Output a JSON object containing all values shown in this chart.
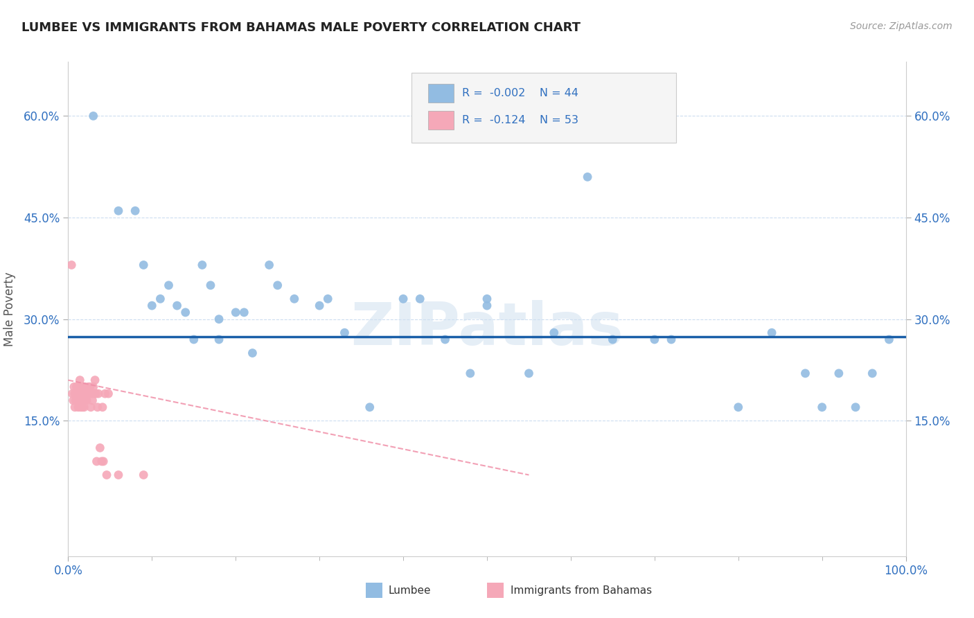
{
  "title": "LUMBEE VS IMMIGRANTS FROM BAHAMAS MALE POVERTY CORRELATION CHART",
  "source": "Source: ZipAtlas.com",
  "ylabel": "Male Poverty",
  "yticks": [
    "15.0%",
    "30.0%",
    "45.0%",
    "60.0%"
  ],
  "ytick_values": [
    0.15,
    0.3,
    0.45,
    0.6
  ],
  "xlim": [
    0.0,
    1.0
  ],
  "ylim": [
    -0.05,
    0.68
  ],
  "lumbee_R": "-0.002",
  "lumbee_N": "44",
  "bahamas_R": "-0.124",
  "bahamas_N": "53",
  "lumbee_color": "#92bce2",
  "bahamas_color": "#f5a8b8",
  "lumbee_line_color": "#1a5fa8",
  "bahamas_line_color": "#f090a8",
  "watermark": "ZIPatlas",
  "lumbee_x": [
    0.03,
    0.06,
    0.08,
    0.09,
    0.1,
    0.11,
    0.12,
    0.13,
    0.14,
    0.15,
    0.16,
    0.17,
    0.18,
    0.18,
    0.2,
    0.21,
    0.22,
    0.24,
    0.25,
    0.27,
    0.3,
    0.31,
    0.33,
    0.36,
    0.4,
    0.42,
    0.45,
    0.48,
    0.5,
    0.5,
    0.55,
    0.58,
    0.62,
    0.65,
    0.7,
    0.72,
    0.8,
    0.84,
    0.88,
    0.9,
    0.92,
    0.94,
    0.96,
    0.98
  ],
  "lumbee_y": [
    0.6,
    0.46,
    0.46,
    0.38,
    0.32,
    0.33,
    0.35,
    0.32,
    0.31,
    0.27,
    0.38,
    0.35,
    0.3,
    0.27,
    0.31,
    0.31,
    0.25,
    0.38,
    0.35,
    0.33,
    0.32,
    0.33,
    0.28,
    0.17,
    0.33,
    0.33,
    0.27,
    0.22,
    0.32,
    0.33,
    0.22,
    0.28,
    0.51,
    0.27,
    0.27,
    0.27,
    0.17,
    0.28,
    0.22,
    0.17,
    0.22,
    0.17,
    0.22,
    0.27
  ],
  "bahamas_x": [
    0.004,
    0.005,
    0.006,
    0.007,
    0.008,
    0.008,
    0.009,
    0.01,
    0.01,
    0.011,
    0.012,
    0.012,
    0.013,
    0.013,
    0.014,
    0.014,
    0.015,
    0.015,
    0.016,
    0.016,
    0.017,
    0.017,
    0.018,
    0.018,
    0.019,
    0.019,
    0.02,
    0.02,
    0.021,
    0.022,
    0.023,
    0.024,
    0.025,
    0.026,
    0.027,
    0.028,
    0.029,
    0.03,
    0.031,
    0.032,
    0.033,
    0.034,
    0.035,
    0.036,
    0.038,
    0.04,
    0.041,
    0.042,
    0.044,
    0.046,
    0.048,
    0.06,
    0.09
  ],
  "bahamas_y": [
    0.38,
    0.19,
    0.18,
    0.2,
    0.19,
    0.17,
    0.18,
    0.19,
    0.2,
    0.18,
    0.17,
    0.19,
    0.18,
    0.2,
    0.19,
    0.21,
    0.18,
    0.17,
    0.19,
    0.2,
    0.17,
    0.19,
    0.18,
    0.2,
    0.17,
    0.19,
    0.18,
    0.2,
    0.19,
    0.18,
    0.19,
    0.2,
    0.19,
    0.2,
    0.17,
    0.19,
    0.18,
    0.2,
    0.19,
    0.21,
    0.19,
    0.09,
    0.17,
    0.19,
    0.11,
    0.09,
    0.17,
    0.09,
    0.19,
    0.07,
    0.19,
    0.07,
    0.07
  ],
  "lumbee_trend_y_start": 0.274,
  "lumbee_trend_y_end": 0.274,
  "bahamas_trend_x_start": 0.0,
  "bahamas_trend_x_end": 0.55,
  "bahamas_trend_y_start": 0.21,
  "bahamas_trend_y_end": 0.07
}
